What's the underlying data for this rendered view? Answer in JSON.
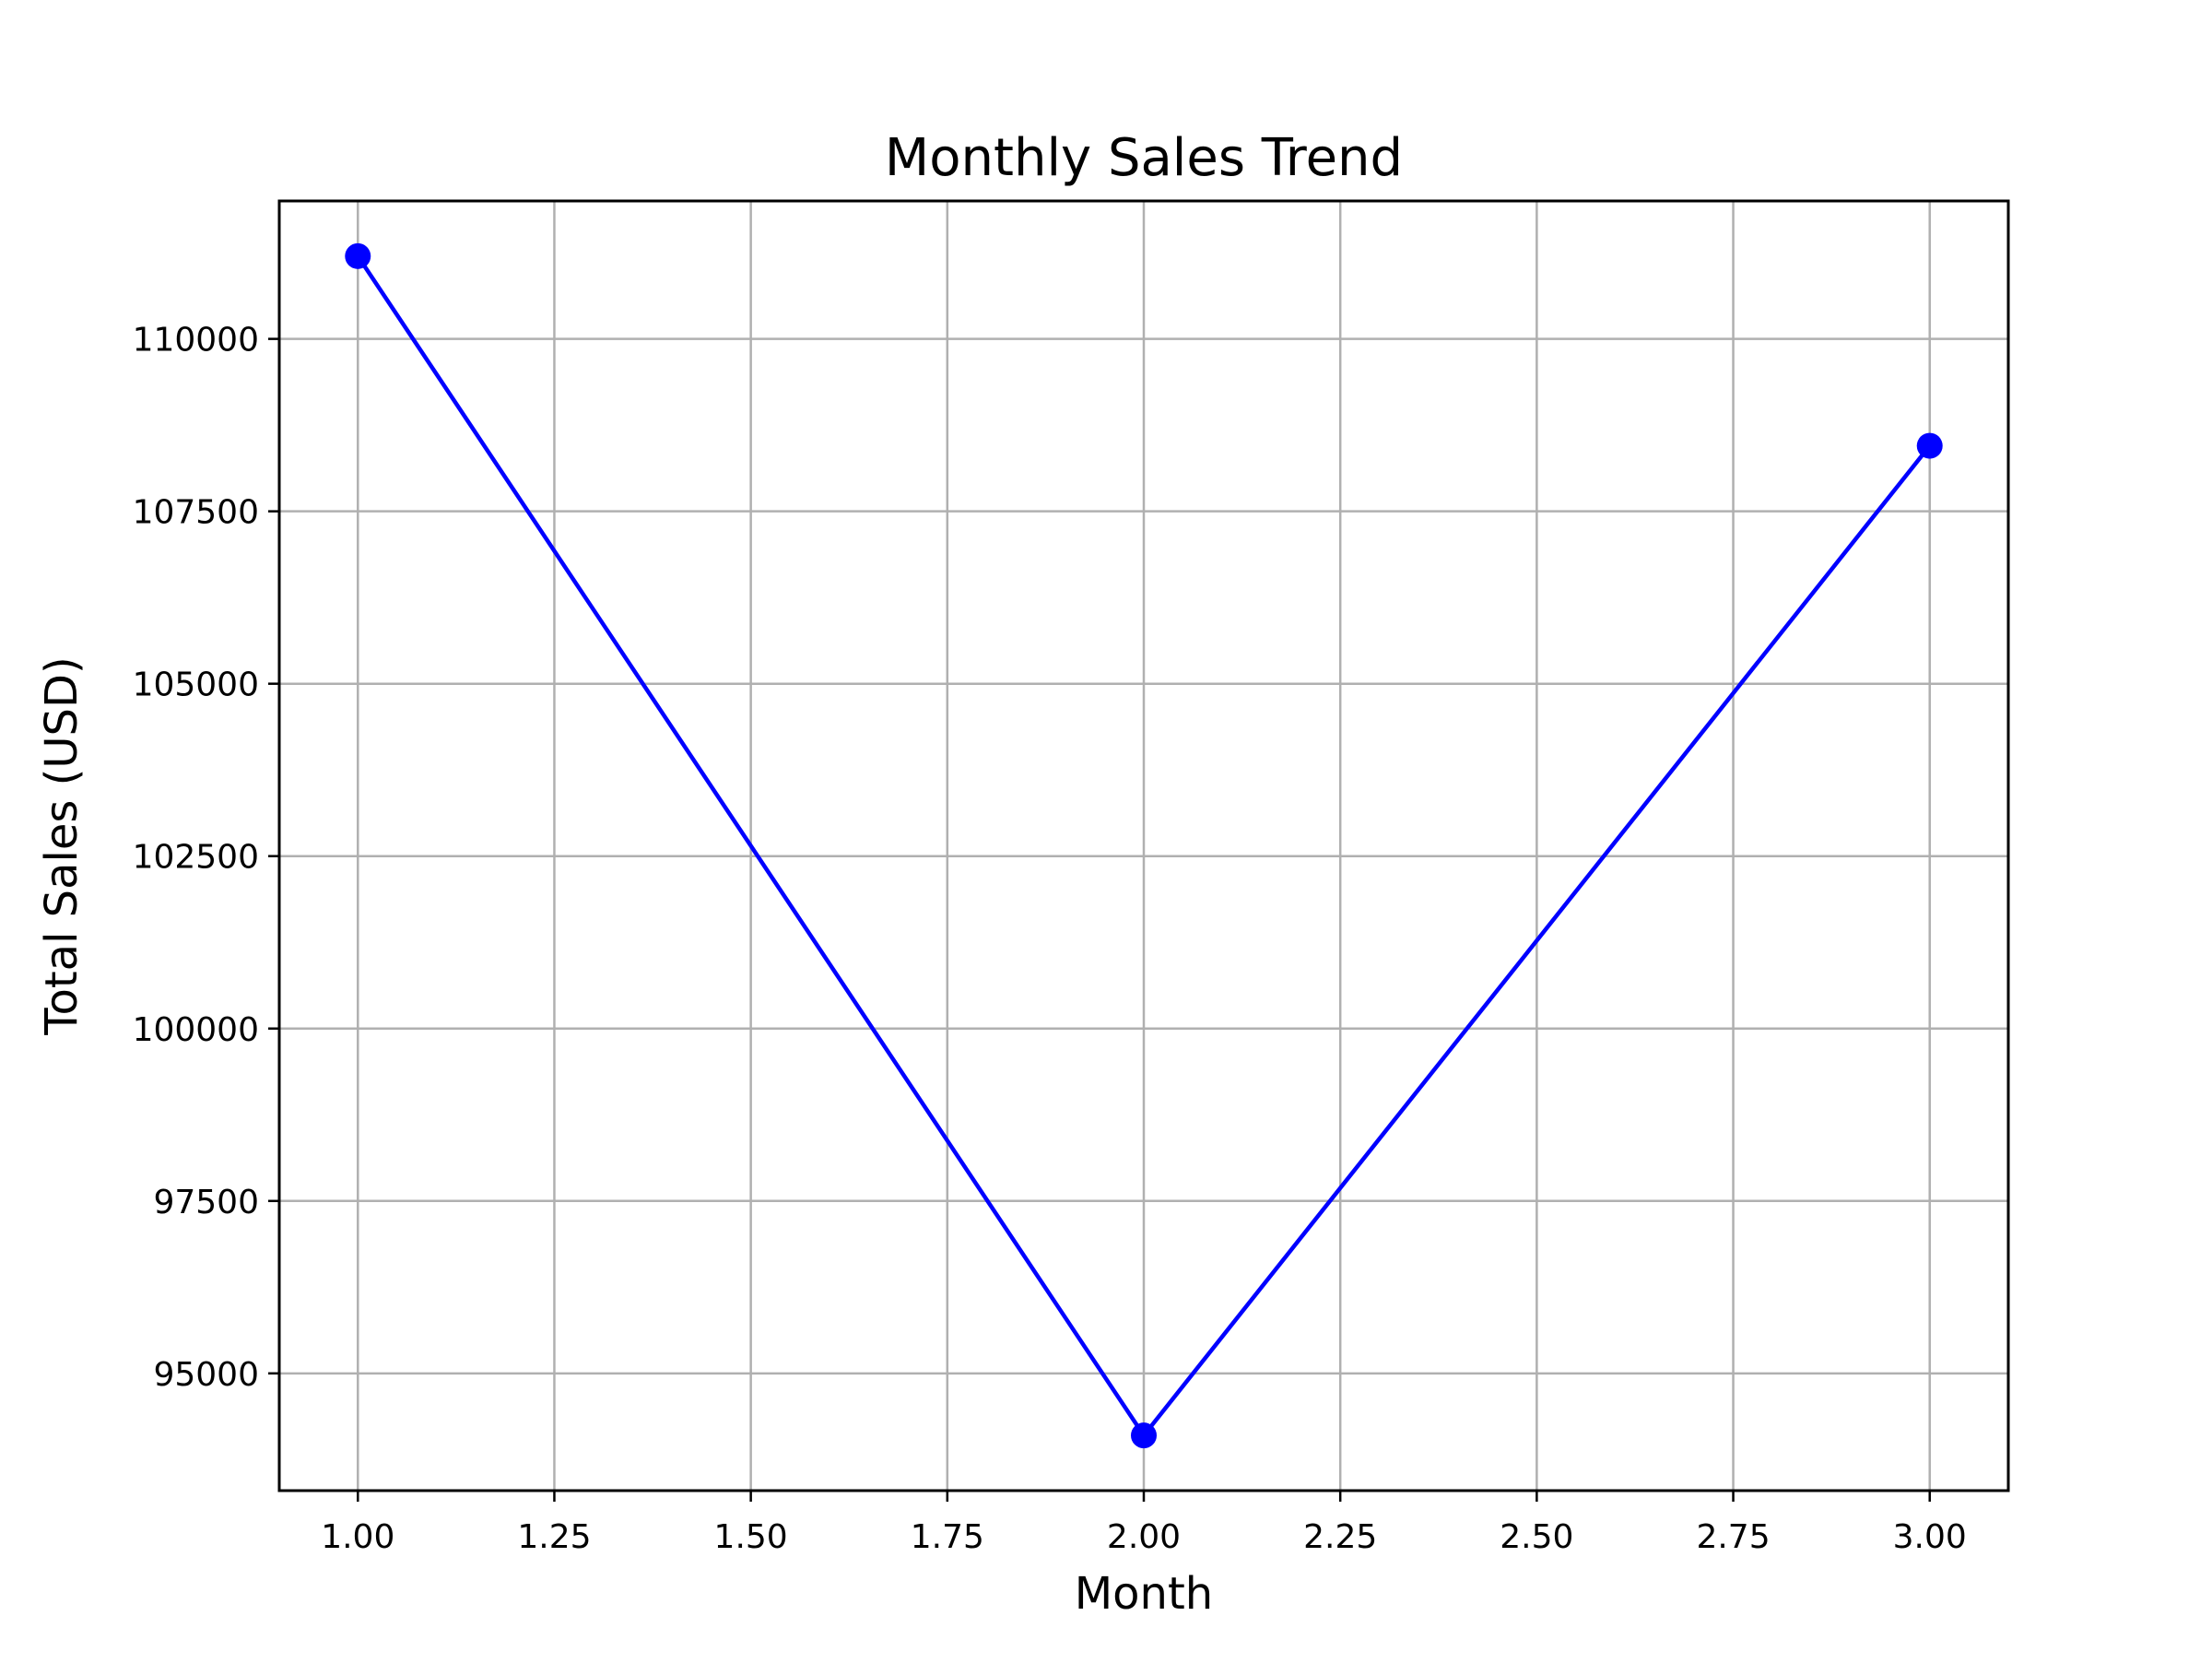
{
  "chart_data": {
    "type": "line",
    "title": "Monthly Sales Trend",
    "xlabel": "Month",
    "ylabel": "Total Sales (USD)",
    "xlim": [
      0.9,
      3.1
    ],
    "ylim": [
      93300,
      112000
    ],
    "grid": true,
    "x_ticks": [
      1.0,
      1.25,
      1.5,
      1.75,
      2.0,
      2.25,
      2.5,
      2.75,
      3.0
    ],
    "x_tick_labels": [
      "1.00",
      "1.25",
      "1.50",
      "1.75",
      "2.00",
      "2.25",
      "2.50",
      "2.75",
      "3.00"
    ],
    "y_ticks": [
      95000,
      97500,
      100000,
      102500,
      105000,
      107500,
      110000
    ],
    "y_tick_labels": [
      "95000",
      "97500",
      "100000",
      "102500",
      "105000",
      "107500",
      "110000"
    ],
    "series": [
      {
        "x": [
          1,
          2,
          3
        ],
        "values": [
          111200,
          94100,
          108450
        ],
        "color": "#0000ff",
        "marker": "circle"
      }
    ]
  },
  "colors": {
    "line": "#0000ff",
    "grid": "#b0b0b0",
    "axes": "#000000"
  }
}
